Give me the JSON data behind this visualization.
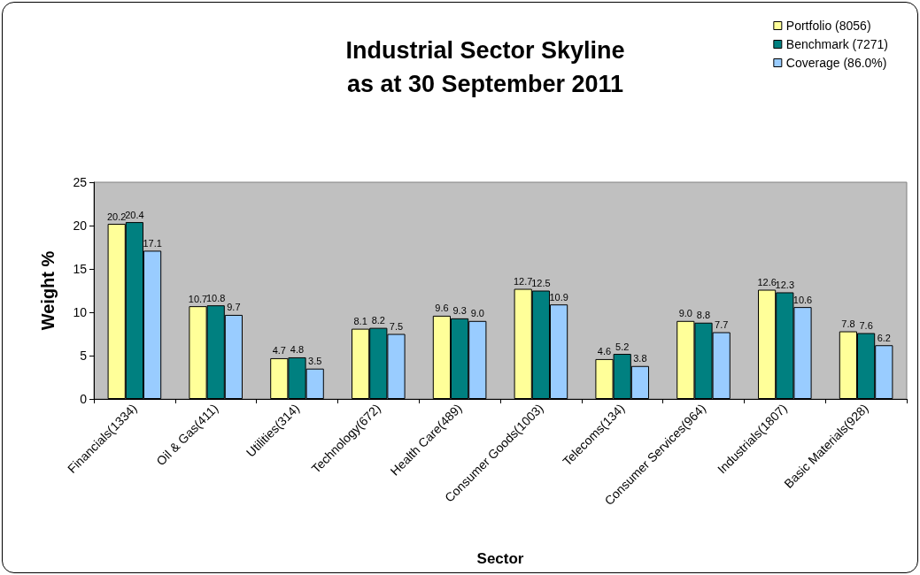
{
  "chart_data": {
    "type": "bar",
    "title": "Industrial Sector Skyline\nas at 30 September 2011",
    "xlabel": "Sector",
    "ylabel": "Weight %",
    "categories": [
      "Financials(1334)",
      "Oil & Gas(411)",
      "Utilities(314)",
      "Technology(672)",
      "Health Care(489)",
      "Consumer Goods(1003)",
      "Telecoms(134)",
      "Consumer Services(964)",
      "Industrials(1807)",
      "Basic Materials(928)"
    ],
    "series": [
      {
        "name": "Portfolio (8056)",
        "color": "#ffff99",
        "values": [
          20.2,
          10.7,
          4.7,
          8.1,
          9.6,
          12.7,
          4.6,
          9.0,
          12.6,
          7.8
        ],
        "value_labels": [
          "20.2",
          "10.7",
          "4.7",
          "8.1",
          "9.6",
          "12.7",
          "4.6",
          "9.0",
          "12.6",
          "7.8"
        ]
      },
      {
        "name": "Benchmark (7271)",
        "color": "#008080",
        "values": [
          20.4,
          10.8,
          4.8,
          8.2,
          9.3,
          12.5,
          5.2,
          8.8,
          12.3,
          7.6
        ],
        "value_labels": [
          "20.4",
          "10.8",
          "4.8",
          "8.2",
          "9.3",
          "12.5",
          "5.2",
          "8.8",
          "12.3",
          "7.6"
        ]
      },
      {
        "name": "Coverage (86.0%)",
        "color": "#99ccff",
        "values": [
          17.1,
          9.7,
          3.5,
          7.5,
          9.0,
          10.9,
          3.8,
          7.7,
          10.6,
          6.2
        ],
        "value_labels": [
          "17.1",
          "9.7",
          "3.5",
          "7.5",
          "9.0",
          "10.9",
          "3.8",
          "7.7",
          "10.6",
          "6.2"
        ]
      }
    ],
    "ylim": [
      0,
      25
    ],
    "yticks": [
      0,
      5,
      10,
      15,
      20,
      25
    ],
    "grid": false,
    "legend": "top right"
  }
}
